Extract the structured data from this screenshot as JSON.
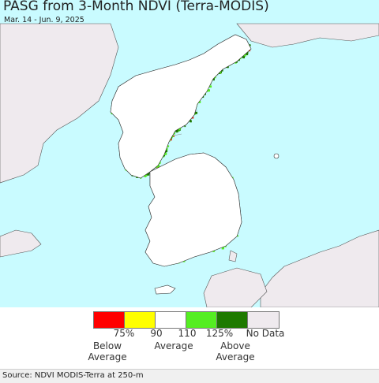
{
  "title": "PASG from 3-Month NDVI (Terra-MODIS)",
  "date_range": "Mar. 14 - Jun. 9, 2025",
  "colors": {
    "water": "#c9fbff",
    "foreign_land": "#efeaee",
    "korea_land": "#ffffff",
    "boundary": "#333333",
    "green_light": "#55ee22",
    "green_dark": "#1e7a00",
    "red": "#ee1100"
  },
  "legend": {
    "colors": [
      "#ff0000",
      "#ffff00",
      "#ffffff",
      "#55ee22",
      "#1e7a00",
      "#efeaee"
    ],
    "ticks": [
      "75%",
      "90",
      "110",
      "125%",
      "No Data"
    ],
    "below_label": "Below\nAverage",
    "average_label": "Average",
    "above_label": "Above\nAverage"
  },
  "source": "Source: NDVI MODIS-Terra at 250-m"
}
